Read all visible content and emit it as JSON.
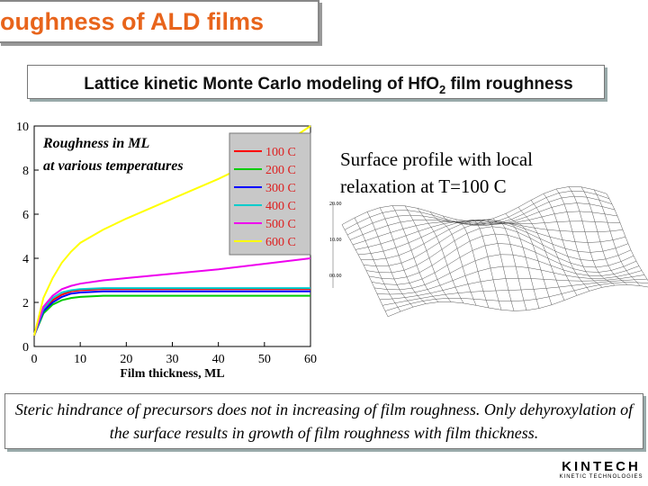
{
  "slide": {
    "title": "oughness of ALD films",
    "subtitle": {
      "main": "Lattice kinetic Monte Carlo modeling of HfO",
      "sub": "2",
      "rest": " film roughness"
    },
    "caption": [
      "Surface profile with local",
      "relaxation at T=100 C"
    ],
    "surface_labels": [
      "20.00",
      "10.00",
      "00.00"
    ],
    "note": "Steric hindrance of precursors does not in increasing of film roughness. Only dehyroxylation of the surface results in growth of film roughness with film thickness.",
    "logo": {
      "name": "KINTECH",
      "tagline": "KINETIC TECHNOLOGIES"
    }
  },
  "chart_data": {
    "type": "line",
    "annotation": [
      "Roughness in ML",
      "at various temperatures"
    ],
    "x_label": "Film thickness, ML",
    "x": [
      0,
      2,
      4,
      6,
      8,
      10,
      15,
      20,
      30,
      40,
      50,
      60
    ],
    "series": [
      {
        "name": "100 C",
        "color": "#ff0000",
        "values": [
          0.5,
          1.6,
          2.1,
          2.35,
          2.5,
          2.55,
          2.6,
          2.6,
          2.6,
          2.6,
          2.6,
          2.6
        ]
      },
      {
        "name": "200 C",
        "color": "#00cc00",
        "values": [
          0.5,
          1.5,
          1.9,
          2.1,
          2.2,
          2.25,
          2.3,
          2.3,
          2.3,
          2.3,
          2.3,
          2.3
        ]
      },
      {
        "name": "300 C",
        "color": "#0000ff",
        "values": [
          0.5,
          1.6,
          2.0,
          2.25,
          2.4,
          2.45,
          2.5,
          2.5,
          2.5,
          2.5,
          2.5,
          2.5
        ]
      },
      {
        "name": "400 C",
        "color": "#00cccc",
        "values": [
          0.5,
          1.7,
          2.2,
          2.45,
          2.55,
          2.6,
          2.65,
          2.65,
          2.65,
          2.65,
          2.65,
          2.65
        ]
      },
      {
        "name": "500 C",
        "color": "#ee00ee",
        "values": [
          0.5,
          1.8,
          2.3,
          2.6,
          2.75,
          2.85,
          3.0,
          3.1,
          3.3,
          3.5,
          3.75,
          4.0
        ]
      },
      {
        "name": "600 C",
        "color": "#ffff00",
        "values": [
          0.5,
          2.2,
          3.1,
          3.8,
          4.3,
          4.7,
          5.3,
          5.8,
          6.7,
          7.6,
          8.6,
          10
        ]
      }
    ],
    "xlim": [
      0,
      60
    ],
    "xticks": [
      0,
      10,
      20,
      30,
      40,
      50,
      60
    ],
    "ylim": [
      0,
      10
    ],
    "yticks": [
      0,
      2,
      4,
      6,
      8,
      10
    ]
  }
}
